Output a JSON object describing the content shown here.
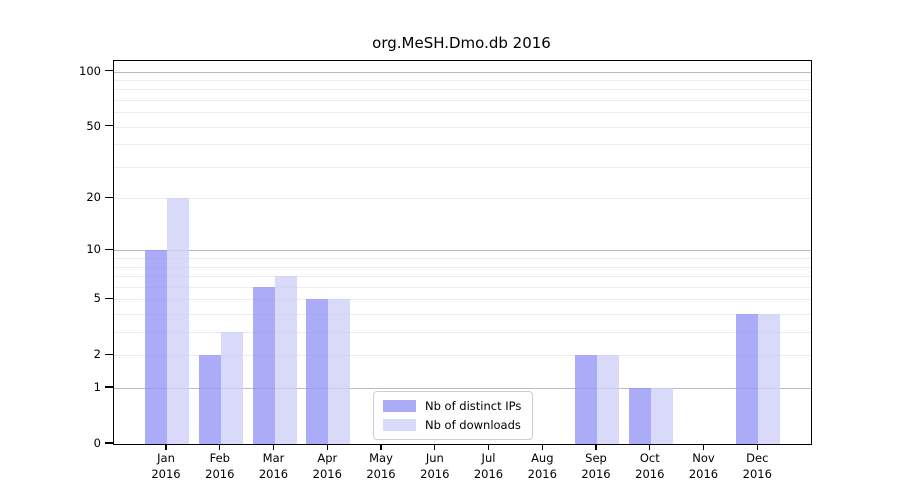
{
  "chart_data": {
    "type": "bar",
    "title": "org.MeSH.Dmo.db 2016",
    "categories": [
      "Jan",
      "Feb",
      "Mar",
      "Apr",
      "May",
      "Jun",
      "Jul",
      "Aug",
      "Sep",
      "Oct",
      "Nov",
      "Dec"
    ],
    "year_label": "2016",
    "series": [
      {
        "name": "Nb of distinct IPs",
        "color": "rgba(150,150,246,0.8)",
        "values": [
          10,
          2,
          6,
          5,
          0,
          0,
          0,
          0,
          2,
          1,
          0,
          4
        ]
      },
      {
        "name": "Nb of downloads",
        "color": "rgba(208,208,248,0.8)",
        "values": [
          20,
          3,
          7,
          5,
          0,
          0,
          0,
          0,
          2,
          1,
          0,
          4
        ]
      }
    ],
    "ylabel": "",
    "xlabel": "",
    "yaxis": {
      "scale": "log1p",
      "ticks": [
        0,
        1,
        2,
        5,
        10,
        20,
        50,
        100
      ],
      "axis_max": 114
    },
    "grid": {
      "major_values": [
        1,
        10,
        100
      ],
      "minor_values": [
        2,
        3,
        4,
        5,
        6,
        7,
        8,
        9,
        20,
        30,
        40,
        50,
        60,
        70,
        80,
        90
      ],
      "major_color": "#bcbcbc",
      "minor_color": "#ececec"
    },
    "legend_position": "lower center"
  }
}
